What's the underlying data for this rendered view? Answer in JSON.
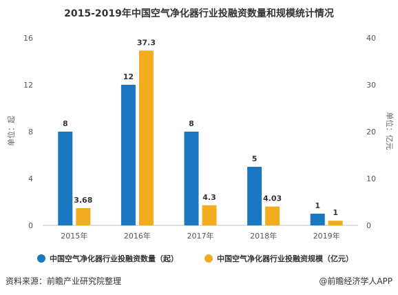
{
  "chart_data": {
    "type": "bar",
    "title": "2015-2019年中国空气净化器行业投融资数量和规模统计情况",
    "categories": [
      "2015年",
      "2016年",
      "2017年",
      "2018年",
      "2019年"
    ],
    "series": [
      {
        "name": "中国空气净化器行业投融资数量（起）",
        "axis": "left",
        "color": "#1a78c2",
        "values": [
          8,
          12,
          8,
          5,
          1
        ],
        "labels": [
          "8",
          "12",
          "8",
          "5",
          "1"
        ]
      },
      {
        "name": "中国空气净化器行业投融资规模（亿元）",
        "axis": "right",
        "color": "#f1ad1e",
        "values": [
          3.68,
          37.3,
          4.3,
          4.03,
          1
        ],
        "labels": [
          "3.68",
          "37.3",
          "4.3",
          "4.03",
          "1"
        ]
      }
    ],
    "y_left": {
      "label": "单位：起",
      "min": 0,
      "max": 16,
      "ticks": [
        "0",
        "4",
        "8",
        "12",
        "16"
      ]
    },
    "y_right": {
      "label": "单位：亿元",
      "min": 0,
      "max": 40,
      "ticks": [
        "0",
        "10",
        "20",
        "30",
        "40"
      ]
    },
    "grid": false,
    "legend": "bottom"
  },
  "footer": {
    "source": "资料来源：前瞻产业研究院整理",
    "brand": "@前瞻经济学人APP"
  }
}
